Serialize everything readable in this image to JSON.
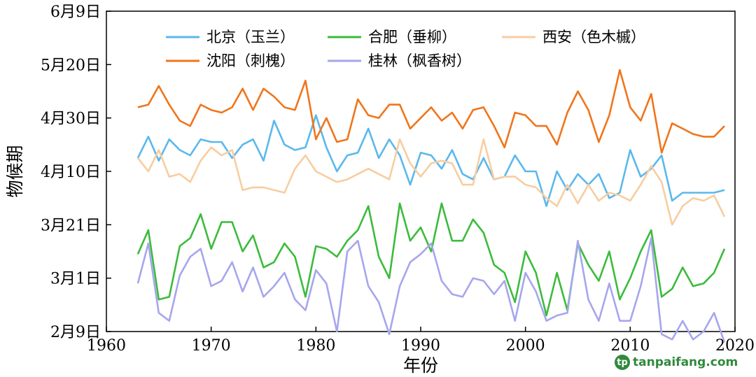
{
  "chart_data": {
    "type": "line",
    "xlabel": "年份",
    "ylabel": "物候期",
    "xlim": [
      1960,
      2020
    ],
    "x_ticks": [
      1960,
      1970,
      1980,
      1990,
      2000,
      2010,
      2020
    ],
    "ylim": [
      40,
      160
    ],
    "y_ticks": [
      {
        "value": 40,
        "label": "2月9日"
      },
      {
        "value": 60,
        "label": "3月1日"
      },
      {
        "value": 80,
        "label": "3月21日"
      },
      {
        "value": 100,
        "label": "4月10日"
      },
      {
        "value": 120,
        "label": "4月30日"
      },
      {
        "value": 140,
        "label": "5月20日"
      },
      {
        "value": 160,
        "label": "6月9日"
      }
    ],
    "grid": false,
    "legend_position": "top",
    "x": [
      1963,
      1964,
      1965,
      1966,
      1967,
      1968,
      1969,
      1970,
      1971,
      1972,
      1973,
      1974,
      1975,
      1976,
      1977,
      1978,
      1979,
      1980,
      1981,
      1982,
      1983,
      1984,
      1985,
      1986,
      1987,
      1988,
      1989,
      1990,
      1991,
      1992,
      1993,
      1994,
      1995,
      1996,
      1997,
      1998,
      1999,
      2000,
      2001,
      2002,
      2003,
      2004,
      2005,
      2006,
      2007,
      2008,
      2009,
      2010,
      2011,
      2012,
      2013,
      2014,
      2015,
      2016,
      2017,
      2018,
      2019
    ],
    "series": [
      {
        "name": "北京（玉兰）",
        "color": "#5bb8ec",
        "values": [
          105,
          113,
          104,
          112,
          108,
          106,
          112,
          111,
          111,
          105,
          110,
          112,
          104,
          119,
          110,
          108,
          109,
          121,
          109,
          100,
          106,
          107,
          116,
          105,
          112,
          106,
          95,
          107,
          106,
          101,
          108,
          99,
          97,
          105,
          97,
          98,
          106,
          100,
          100,
          87,
          100,
          93,
          99,
          95,
          99,
          90,
          92,
          108,
          98,
          101,
          106,
          89,
          92,
          92,
          92,
          92,
          93
        ]
      },
      {
        "name": "合肥（垂柳）",
        "color": "#3cbb3c",
        "values": [
          69,
          78,
          52,
          53,
          72,
          75,
          84,
          71,
          81,
          81,
          70,
          76,
          64,
          66,
          73,
          68,
          53,
          72,
          71,
          68,
          74,
          78,
          87,
          68,
          60,
          88,
          74,
          79,
          70,
          88,
          74,
          74,
          82,
          77,
          65,
          62,
          51,
          70,
          62,
          46,
          62,
          48,
          73,
          65,
          59,
          70,
          52,
          60,
          70,
          78,
          53,
          56,
          64,
          57,
          58,
          62,
          71
        ]
      },
      {
        "name": "西安（色木槭）",
        "color": "#f8cda0",
        "values": [
          105,
          100,
          108,
          98,
          99,
          96,
          104,
          109,
          106,
          108,
          93,
          94,
          94,
          93,
          92,
          101,
          106,
          100,
          98,
          96,
          97,
          99,
          101,
          99,
          97,
          112,
          103,
          98,
          103,
          104,
          103,
          95,
          95,
          112,
          97,
          98,
          98,
          95,
          94,
          90,
          87,
          95,
          88,
          95,
          89,
          92,
          91,
          89,
          95,
          102,
          96,
          80,
          87,
          90,
          89,
          91,
          83
        ]
      },
      {
        "name": "沈阳（刺槐）",
        "color": "#f0751b",
        "values": [
          124,
          125,
          132,
          125,
          119,
          117,
          125,
          123,
          122,
          124,
          131,
          123,
          131,
          128,
          124,
          123,
          134,
          112,
          120,
          111,
          112,
          127,
          121,
          120,
          125,
          125,
          116,
          120,
          124,
          119,
          122,
          116,
          123,
          124,
          117,
          109,
          122,
          121,
          117,
          117,
          110,
          122,
          130,
          123,
          111,
          121,
          138,
          124,
          119,
          129,
          107,
          118,
          116,
          114,
          113,
          113,
          117
        ]
      },
      {
        "name": "桂林（枫香树）",
        "color": "#a6a6ee",
        "values": [
          58,
          73,
          47,
          44,
          61,
          68,
          71,
          57,
          59,
          66,
          55,
          64,
          53,
          57,
          62,
          52,
          48,
          63,
          58,
          40,
          70,
          74,
          57,
          51,
          39,
          57,
          66,
          69,
          73,
          59,
          54,
          53,
          60,
          59,
          54,
          59,
          44,
          62,
          55,
          44,
          46,
          47,
          74,
          52,
          44,
          58,
          44,
          44,
          57,
          75,
          39,
          37,
          44,
          37,
          40,
          47,
          36
        ]
      }
    ]
  }
}
